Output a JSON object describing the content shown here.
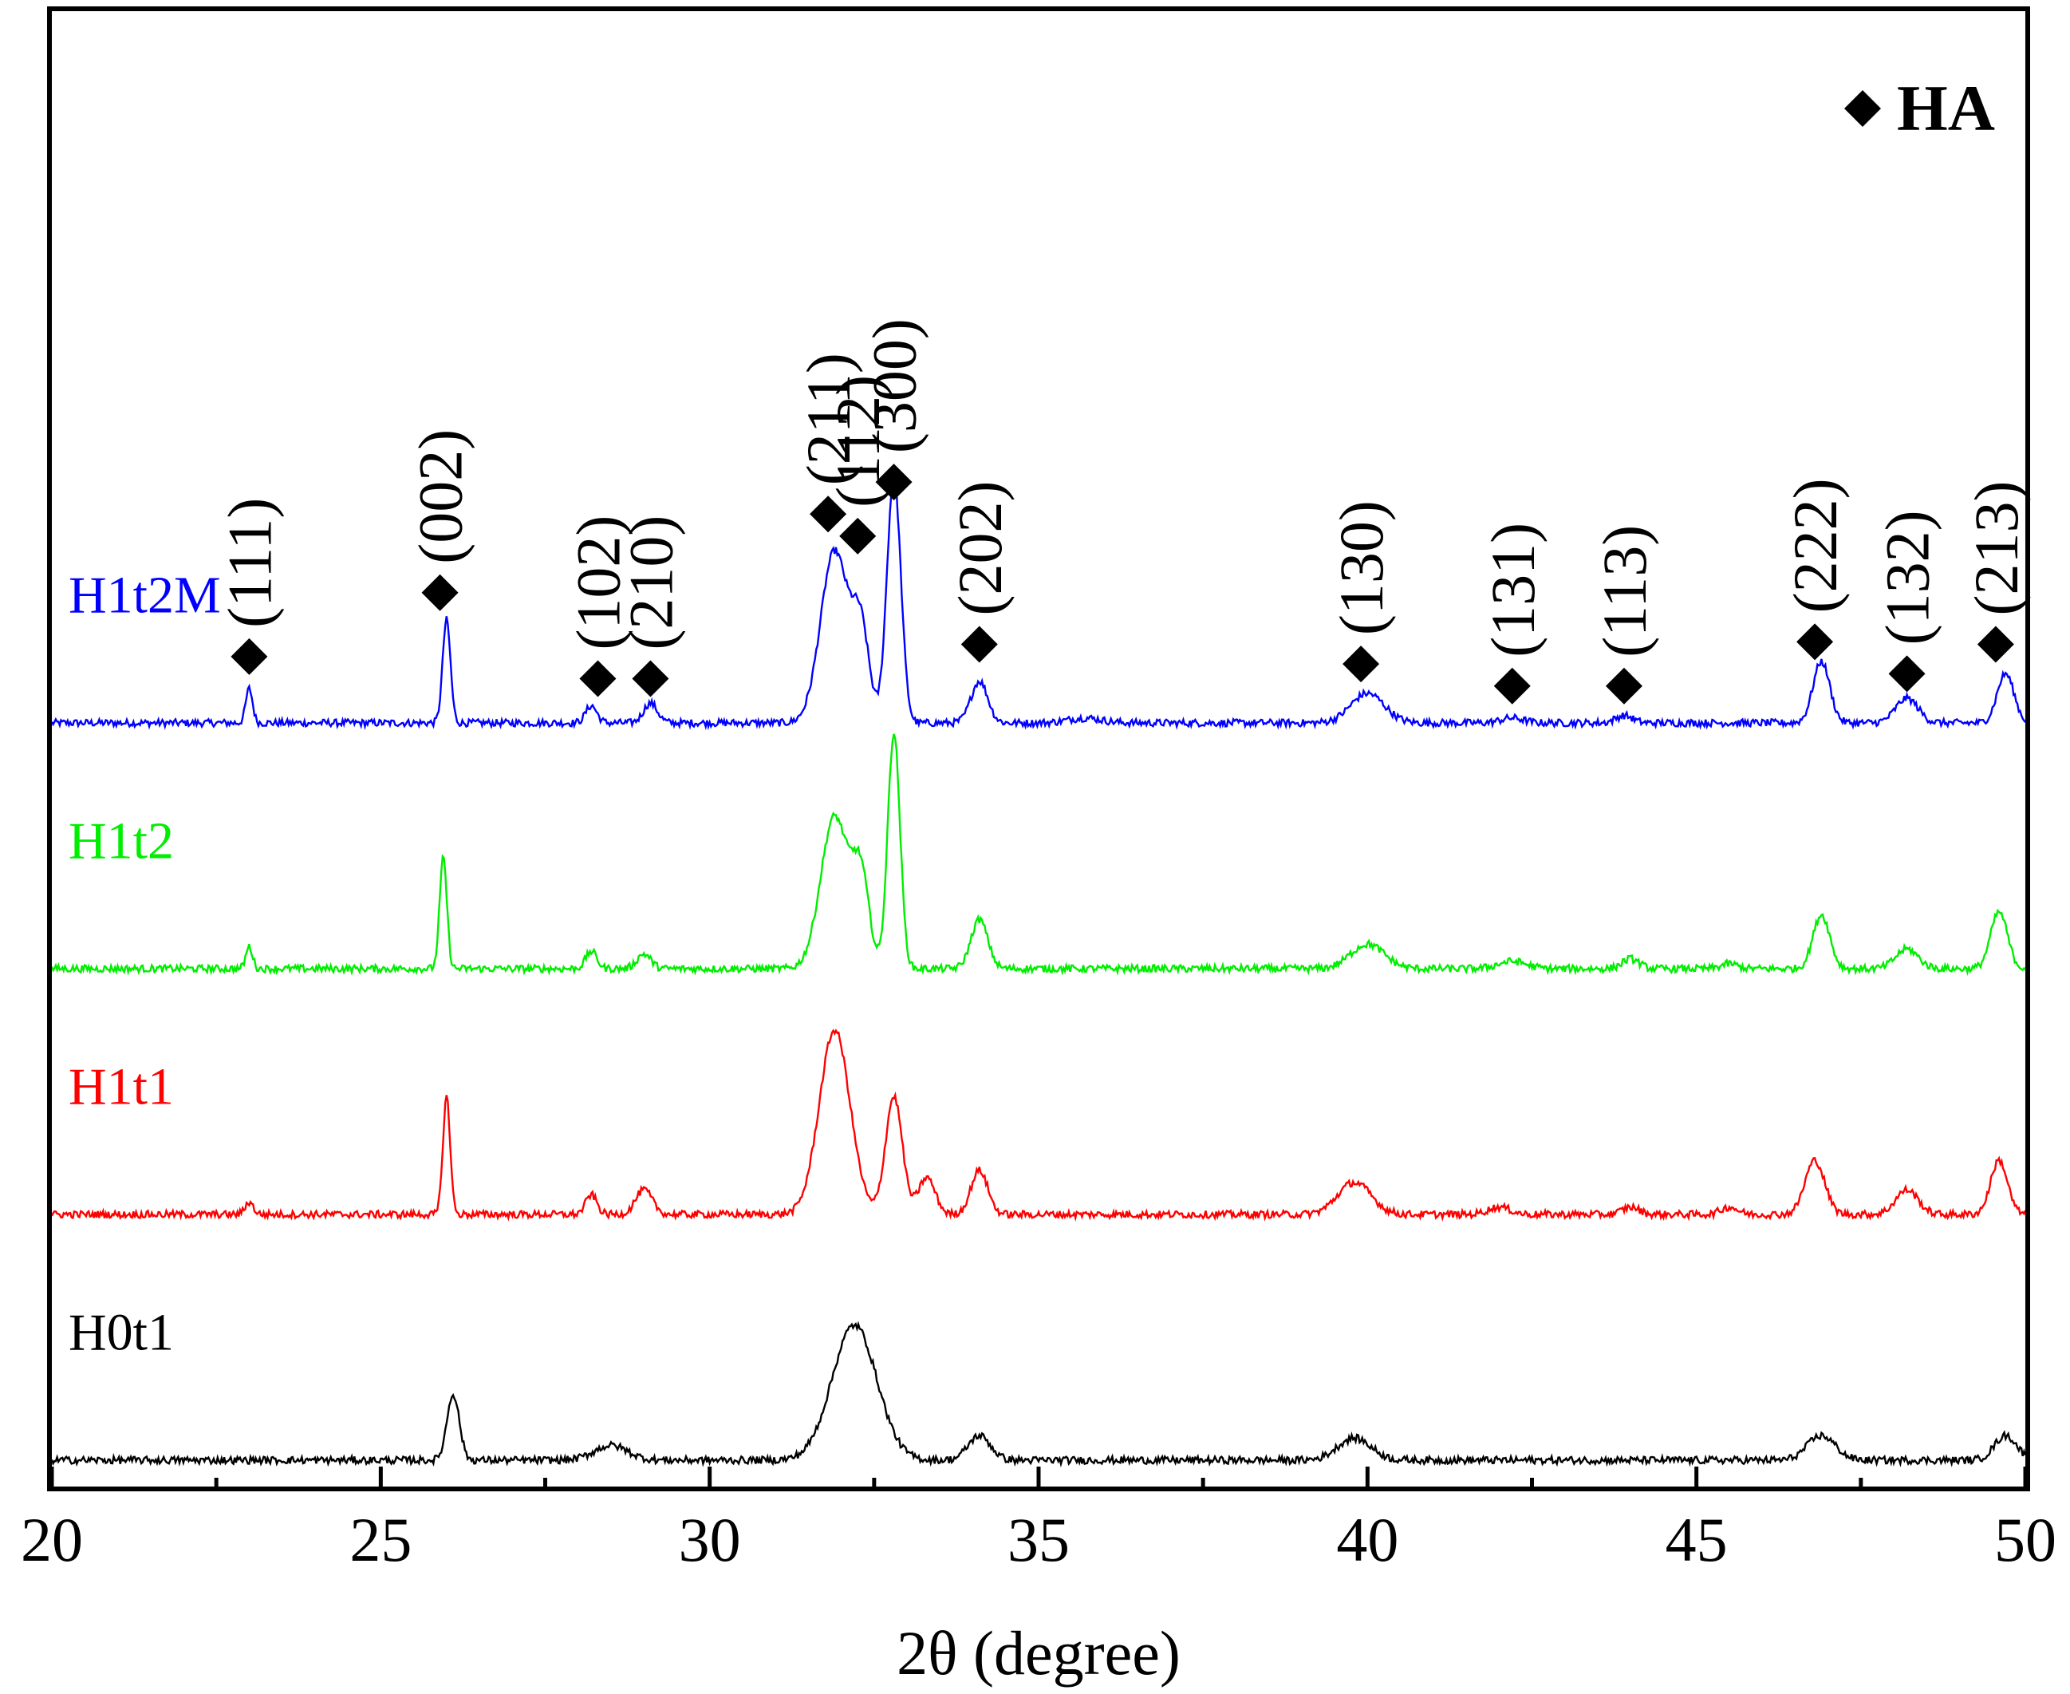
{
  "chart_data": {
    "type": "line",
    "xlabel": "2θ (degree)",
    "ylabel": "",
    "xlim": [
      20,
      50
    ],
    "x_ticks": [
      "20",
      "25",
      "30",
      "35",
      "40",
      "45",
      "50"
    ],
    "legend": {
      "marker": "diamond",
      "label": "HA",
      "placement": "top-right"
    },
    "series": [
      {
        "name": "H1t2M",
        "color": "#0000ff",
        "baseline": 3.0,
        "peaks": [
          [
            23.0,
            0.14,
            0.12
          ],
          [
            26.0,
            0.42,
            0.14
          ],
          [
            28.2,
            0.07,
            0.2
          ],
          [
            29.1,
            0.08,
            0.25
          ],
          [
            31.9,
            0.7,
            0.5
          ],
          [
            32.3,
            0.35,
            0.3
          ],
          [
            32.8,
            1.0,
            0.25
          ],
          [
            34.1,
            0.17,
            0.3
          ],
          [
            35.7,
            0.02,
            0.6
          ],
          [
            40.0,
            0.12,
            0.6
          ],
          [
            42.2,
            0.02,
            0.4
          ],
          [
            43.9,
            0.03,
            0.3
          ],
          [
            46.9,
            0.25,
            0.3
          ],
          [
            48.2,
            0.1,
            0.4
          ],
          [
            49.7,
            0.2,
            0.3
          ]
        ],
        "noise": 0.015
      },
      {
        "name": "H1t2",
        "color": "#00ee00",
        "baseline": 2.0,
        "peaks": [
          [
            23.0,
            0.09,
            0.12
          ],
          [
            25.95,
            0.45,
            0.13
          ],
          [
            28.2,
            0.07,
            0.2
          ],
          [
            29.0,
            0.06,
            0.25
          ],
          [
            31.9,
            0.62,
            0.5
          ],
          [
            32.3,
            0.35,
            0.3
          ],
          [
            32.8,
            0.96,
            0.22
          ],
          [
            34.1,
            0.2,
            0.3
          ],
          [
            40.0,
            0.1,
            0.6
          ],
          [
            42.2,
            0.03,
            0.5
          ],
          [
            44.0,
            0.04,
            0.3
          ],
          [
            45.5,
            0.02,
            0.3
          ],
          [
            46.9,
            0.22,
            0.3
          ],
          [
            48.2,
            0.08,
            0.4
          ],
          [
            49.6,
            0.23,
            0.3
          ]
        ],
        "noise": 0.015
      },
      {
        "name": "H1t1",
        "color": "#ff0000",
        "baseline": 1.0,
        "peaks": [
          [
            23.0,
            0.05,
            0.15
          ],
          [
            26.0,
            0.48,
            0.13
          ],
          [
            28.2,
            0.08,
            0.2
          ],
          [
            29.0,
            0.1,
            0.3
          ],
          [
            31.9,
            0.75,
            0.55
          ],
          [
            32.8,
            0.48,
            0.3
          ],
          [
            33.3,
            0.15,
            0.3
          ],
          [
            34.1,
            0.18,
            0.3
          ],
          [
            39.8,
            0.13,
            0.6
          ],
          [
            42.0,
            0.03,
            0.4
          ],
          [
            44.0,
            0.03,
            0.3
          ],
          [
            45.5,
            0.03,
            0.3
          ],
          [
            46.8,
            0.22,
            0.35
          ],
          [
            48.2,
            0.1,
            0.4
          ],
          [
            49.6,
            0.22,
            0.3
          ]
        ],
        "noise": 0.015
      },
      {
        "name": "H0t1",
        "color": "#000000",
        "baseline": 0.0,
        "peaks": [
          [
            26.1,
            0.27,
            0.22
          ],
          [
            28.5,
            0.06,
            0.6
          ],
          [
            32.2,
            0.55,
            0.8
          ],
          [
            34.1,
            0.1,
            0.4
          ],
          [
            39.8,
            0.09,
            0.6
          ],
          [
            46.9,
            0.1,
            0.5
          ],
          [
            49.7,
            0.1,
            0.4
          ]
        ],
        "noise": 0.015
      }
    ],
    "annotations": [
      {
        "label": "(111)",
        "x": 23.0,
        "marker_y": 3.27
      },
      {
        "label": "(002)",
        "x": 25.9,
        "marker_y": 3.53
      },
      {
        "label": "(102)",
        "x": 28.3,
        "marker_y": 3.18
      },
      {
        "label": "(210)",
        "x": 29.1,
        "marker_y": 3.18
      },
      {
        "label": "(211)",
        "x": 31.8,
        "marker_y": 3.85
      },
      {
        "label": "(112)",
        "x": 32.25,
        "marker_y": 3.76
      },
      {
        "label": "(300)",
        "x": 32.8,
        "marker_y": 3.98
      },
      {
        "label": "(202)",
        "x": 34.1,
        "marker_y": 3.32
      },
      {
        "label": "(130)",
        "x": 39.9,
        "marker_y": 3.24
      },
      {
        "label": "(131)",
        "x": 42.2,
        "marker_y": 3.15
      },
      {
        "label": "(113)",
        "x": 43.9,
        "marker_y": 3.15
      },
      {
        "label": "(222)",
        "x": 46.8,
        "marker_y": 3.33
      },
      {
        "label": "(132)",
        "x": 48.2,
        "marker_y": 3.2
      },
      {
        "label": "(213)",
        "x": 49.55,
        "marker_y": 3.32
      }
    ]
  }
}
